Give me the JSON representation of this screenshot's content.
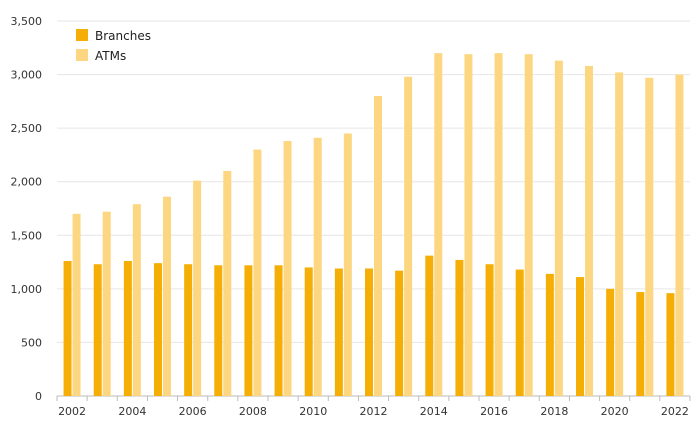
{
  "chart_data": {
    "type": "bar",
    "categories": [
      "2002",
      "2003",
      "2004",
      "2005",
      "2006",
      "2007",
      "2008",
      "2009",
      "2010",
      "2011",
      "2012",
      "2013",
      "2014",
      "2015",
      "2016",
      "2017",
      "2018",
      "2019",
      "2020",
      "2021",
      "2022"
    ],
    "x_tick_labels": [
      "2002",
      "2004",
      "2006",
      "2008",
      "2010",
      "2012",
      "2014",
      "2016",
      "2018",
      "2020",
      "2022"
    ],
    "series": [
      {
        "name": "Branches",
        "color": "#f5ae05",
        "values": [
          1260,
          1230,
          1260,
          1240,
          1230,
          1220,
          1220,
          1220,
          1200,
          1190,
          1190,
          1170,
          1310,
          1270,
          1230,
          1180,
          1140,
          1110,
          1000,
          970,
          960
        ]
      },
      {
        "name": "ATMs",
        "color": "#fcd680",
        "values": [
          1700,
          1720,
          1790,
          1860,
          2010,
          2100,
          2300,
          2380,
          2410,
          2450,
          2800,
          2980,
          3200,
          3190,
          3200,
          3190,
          3130,
          3080,
          3020,
          2970,
          3000
        ]
      }
    ],
    "y_ticks": [
      0,
      500,
      1000,
      1500,
      2000,
      2500,
      3000,
      3500
    ],
    "y_tick_labels": [
      "0",
      "500",
      "1,000",
      "1,500",
      "2,000",
      "2,500",
      "3,000",
      "3,500"
    ],
    "ylim": [
      0,
      3500
    ],
    "grid": true,
    "legend_position": "top-left",
    "title": "",
    "xlabel": "",
    "ylabel": ""
  }
}
